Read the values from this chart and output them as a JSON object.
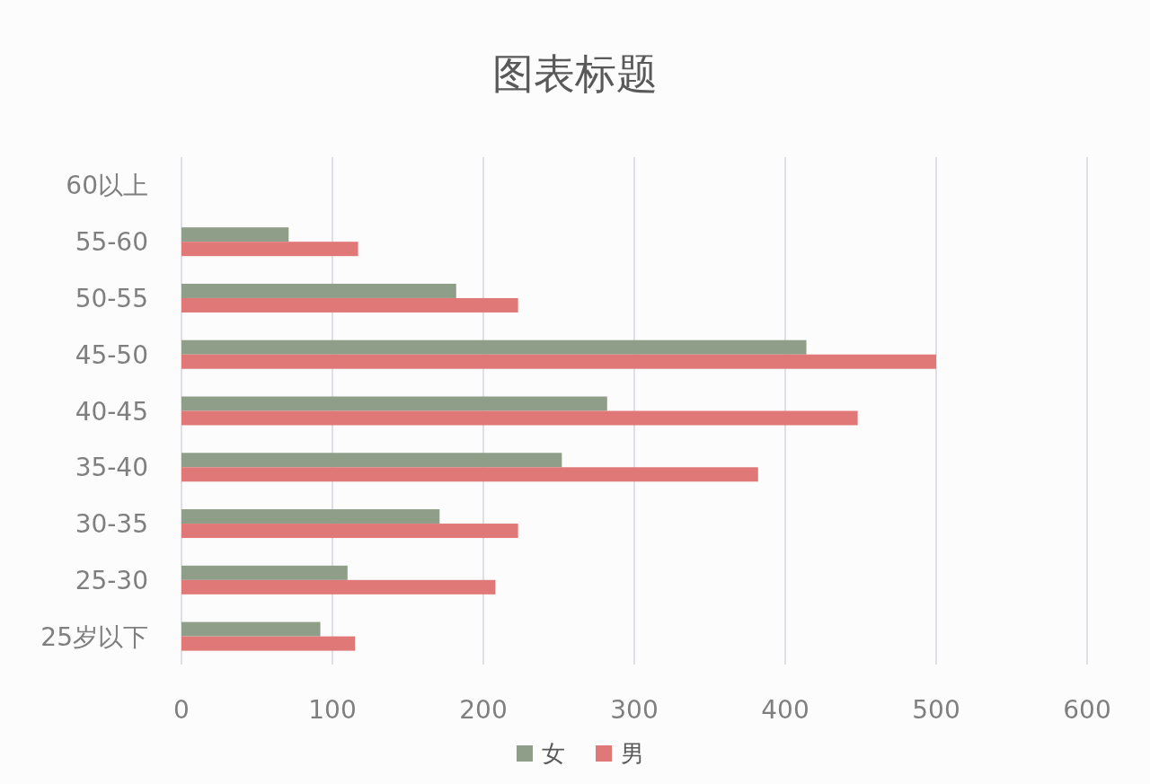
{
  "chart_data": {
    "type": "bar",
    "orientation": "horizontal",
    "title": "图表标题",
    "categories": [
      "60以上",
      "55-60",
      "50-55",
      "45-50",
      "40-45",
      "35-40",
      "30-35",
      "25-30",
      "25岁以下"
    ],
    "series": [
      {
        "name": "女",
        "color": "#8f9e88",
        "values": [
          null,
          71,
          182,
          414,
          282,
          252,
          171,
          110,
          92
        ]
      },
      {
        "name": "男",
        "color": "#e07878",
        "values": [
          null,
          117,
          223,
          500,
          448,
          382,
          223,
          208,
          115
        ]
      }
    ],
    "xlim": [
      0,
      600
    ],
    "xticks": [
      0,
      100,
      200,
      300,
      400,
      500,
      600
    ],
    "grid": "x",
    "legend": "bottom"
  }
}
